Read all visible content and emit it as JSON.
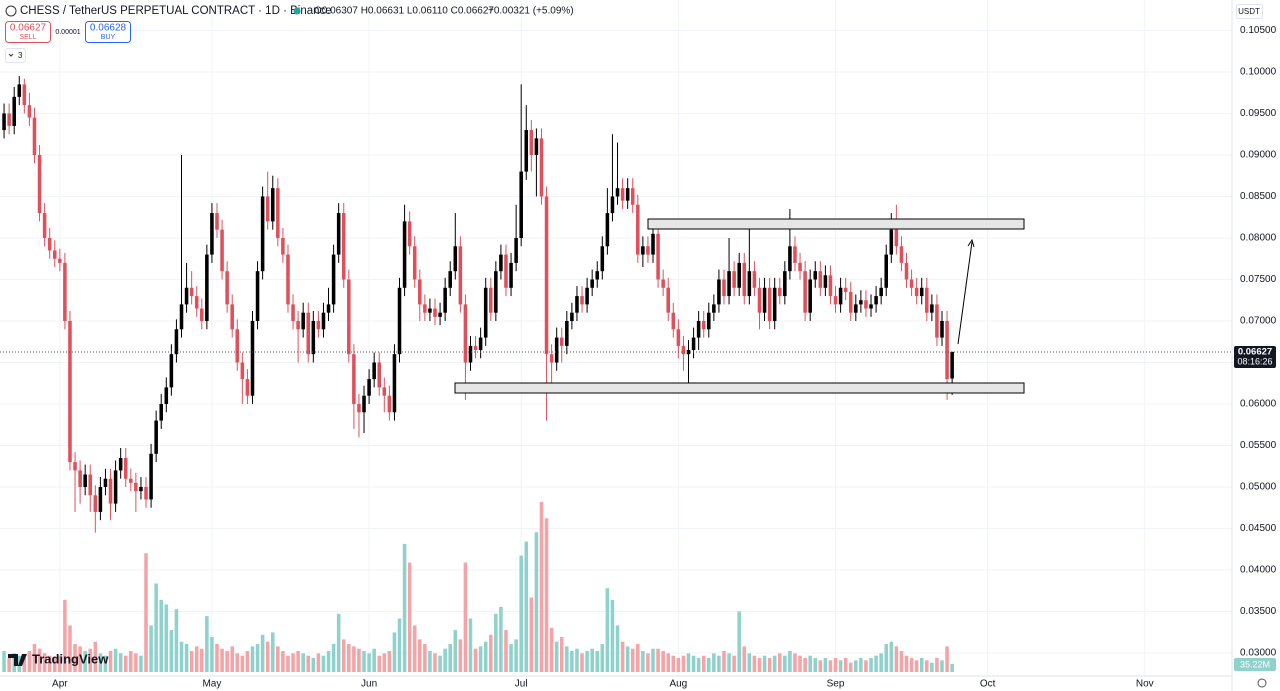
{
  "header": {
    "symbol": "CHESS / TetherUS PERPETUAL CONTRACT · 1D · Binance",
    "ohlc": "O0.06307 H0.06631 L0.06110 C0.06627",
    "change": "+0.00321 (+5.09%)",
    "sell_price": "0.06627",
    "sell": "SELL",
    "spread": "0.00001",
    "buy_price": "0.06628",
    "buy": "BUY",
    "indicators_count": "3",
    "currency": "USDT",
    "countdown": "08:16:26",
    "volume_label": "35.22M",
    "logo": "TradingView"
  },
  "chart_data": {
    "type": "candlestick",
    "up_color": "#000000",
    "down_color": "#e0505c",
    "volume_up_color": "#8fd1cb",
    "volume_down_color": "#f4a3a6",
    "grid": true,
    "xlim": [
      -0.8,
      242.2
    ],
    "xticks": [
      {
        "value": 11,
        "label": "Apr"
      },
      {
        "value": 41,
        "label": "May"
      },
      {
        "value": 72,
        "label": "Jun"
      },
      {
        "value": 102,
        "label": "Jul"
      },
      {
        "value": 133,
        "label": "Aug"
      },
      {
        "value": 164,
        "label": "Sep"
      },
      {
        "value": 194,
        "label": "Oct"
      },
      {
        "value": 225,
        "label": "Nov"
      }
    ],
    "ylim": [
      0.02723,
      0.10867
    ],
    "yticks": [
      {
        "value": 0.03,
        "label": "0.03000"
      },
      {
        "value": 0.035,
        "label": "0.03500"
      },
      {
        "value": 0.04,
        "label": "0.04000"
      },
      {
        "value": 0.045,
        "label": "0.04500"
      },
      {
        "value": 0.05,
        "label": "0.05000"
      },
      {
        "value": 0.055,
        "label": "0.05500"
      },
      {
        "value": 0.06,
        "label": "0.06000"
      },
      {
        "value": 0.065,
        "label": "0.06500"
      },
      {
        "value": 0.07,
        "label": "0.07000"
      },
      {
        "value": 0.075,
        "label": "0.07500"
      },
      {
        "value": 0.08,
        "label": "0.08000"
      },
      {
        "value": 0.085,
        "label": "0.08500"
      },
      {
        "value": 0.09,
        "label": "0.09000"
      },
      {
        "value": 0.095,
        "label": "0.09500"
      },
      {
        "value": 0.1,
        "label": "0.10000"
      },
      {
        "value": 0.105,
        "label": "0.10500"
      }
    ],
    "open": [
      0.093,
      0.095,
      0.0935,
      0.097,
      0.0985,
      0.096,
      0.0945,
      0.09,
      0.083,
      0.08,
      0.0785,
      0.0775,
      0.077,
      0.07,
      0.053,
      0.052,
      0.05,
      0.0515,
      0.049,
      0.047,
      0.05,
      0.051,
      0.048,
      0.052,
      0.0535,
      0.051,
      0.0505,
      0.0495,
      0.05,
      0.0485,
      0.054,
      0.058,
      0.06,
      0.062,
      0.066,
      0.069,
      0.072,
      0.074,
      0.073,
      0.0715,
      0.07,
      0.078,
      0.083,
      0.081,
      0.076,
      0.072,
      0.069,
      0.065,
      0.063,
      0.061,
      0.07,
      0.076,
      0.085,
      0.082,
      0.086,
      0.08,
      0.078,
      0.072,
      0.07,
      0.069,
      0.071,
      0.066,
      0.07,
      0.069,
      0.071,
      0.072,
      0.078,
      0.083,
      0.075,
      0.066,
      0.06,
      0.059,
      0.061,
      0.063,
      0.065,
      0.062,
      0.061,
      0.059,
      0.066,
      0.074,
      0.082,
      0.079,
      0.075,
      0.072,
      0.071,
      0.0715,
      0.0705,
      0.071,
      0.074,
      0.076,
      0.079,
      0.072,
      0.065,
      0.067,
      0.0665,
      0.068,
      0.074,
      0.071,
      0.076,
      0.078,
      0.074,
      0.077,
      0.08,
      0.088,
      0.093,
      0.09,
      0.092,
      0.085,
      0.066,
      0.065,
      0.068,
      0.067,
      0.07,
      0.071,
      0.073,
      0.072,
      0.074,
      0.075,
      0.076,
      0.079,
      0.083,
      0.085,
      0.086,
      0.0845,
      0.086,
      0.084,
      0.078,
      0.079,
      0.078,
      0.0805,
      0.075,
      0.074,
      0.071,
      0.069,
      0.067,
      0.066,
      0.0665,
      0.068,
      0.07,
      0.069,
      0.071,
      0.072,
      0.075,
      0.073,
      0.076,
      0.074,
      0.077,
      0.073,
      0.076,
      0.074,
      0.071,
      0.074,
      0.07,
      0.074,
      0.073,
      0.076,
      0.079,
      0.077,
      0.076,
      0.071,
      0.075,
      0.076,
      0.074,
      0.0755,
      0.073,
      0.072,
      0.074,
      0.0735,
      0.071,
      0.072,
      0.0725,
      0.0715,
      0.072,
      0.073,
      0.074,
      0.078,
      0.081,
      0.079,
      0.077,
      0.075,
      0.074,
      0.073,
      0.074,
      0.071,
      0.072,
      0.068,
      0.07,
      0.06307
    ],
    "high": [
      0.0962,
      0.0962,
      0.0982,
      0.0995,
      0.0992,
      0.0975,
      0.0957,
      0.0912,
      0.0842,
      0.0812,
      0.0797,
      0.0787,
      0.0782,
      0.0712,
      0.0542,
      0.0532,
      0.0527,
      0.0527,
      0.0502,
      0.0512,
      0.0522,
      0.0522,
      0.0532,
      0.0547,
      0.0547,
      0.0522,
      0.0517,
      0.0512,
      0.0512,
      0.0552,
      0.0592,
      0.0612,
      0.0632,
      0.0672,
      0.0702,
      0.09,
      0.077,
      0.076,
      0.0742,
      0.0727,
      0.0792,
      0.0842,
      0.0842,
      0.0822,
      0.0772,
      0.0732,
      0.0702,
      0.0662,
      0.0642,
      0.0712,
      0.0772,
      0.0862,
      0.088,
      0.0875,
      0.0872,
      0.0812,
      0.0792,
      0.0732,
      0.0712,
      0.0722,
      0.0722,
      0.0712,
      0.0712,
      0.0722,
      0.074,
      0.0792,
      0.0842,
      0.0842,
      0.0762,
      0.0672,
      0.0612,
      0.0622,
      0.0642,
      0.0662,
      0.0662,
      0.0632,
      0.0622,
      0.0672,
      0.0752,
      0.084,
      0.0832,
      0.0802,
      0.0762,
      0.0732,
      0.0727,
      0.0727,
      0.0722,
      0.0752,
      0.0772,
      0.083,
      0.0802,
      0.0732,
      0.0682,
      0.0682,
      0.0692,
      0.0752,
      0.0752,
      0.0772,
      0.0792,
      0.0792,
      0.0782,
      0.084,
      0.0985,
      0.096,
      0.0942,
      0.0932,
      0.0932,
      0.0862,
      0.0672,
      0.0692,
      0.0692,
      0.0712,
      0.0722,
      0.0742,
      0.0742,
      0.0752,
      0.0762,
      0.0772,
      0.0802,
      0.086,
      0.0925,
      0.0915,
      0.0872,
      0.0872,
      0.0872,
      0.0852,
      0.0802,
      0.0802,
      0.0817,
      0.0817,
      0.0762,
      0.0752,
      0.0722,
      0.0702,
      0.0682,
      0.0677,
      0.0692,
      0.0712,
      0.0712,
      0.0722,
      0.0732,
      0.0762,
      0.0762,
      0.08,
      0.0772,
      0.0782,
      0.0782,
      0.0815,
      0.0772,
      0.0752,
      0.0752,
      0.0752,
      0.0752,
      0.0752,
      0.0772,
      0.0835,
      0.0802,
      0.0782,
      0.0772,
      0.0762,
      0.0772,
      0.0772,
      0.0767,
      0.0767,
      0.0742,
      0.0752,
      0.0752,
      0.0747,
      0.0732,
      0.0737,
      0.0737,
      0.0732,
      0.0742,
      0.0752,
      0.0792,
      0.083,
      0.084,
      0.0802,
      0.0782,
      0.0762,
      0.0752,
      0.0752,
      0.0752,
      0.0732,
      0.0732,
      0.0712,
      0.0712,
      0.06631
    ],
    "low": [
      0.092,
      0.0925,
      0.0925,
      0.096,
      0.095,
      0.0935,
      0.089,
      0.082,
      0.079,
      0.0775,
      0.0765,
      0.076,
      0.069,
      0.052,
      0.047,
      0.048,
      0.049,
      0.047,
      0.0445,
      0.046,
      0.049,
      0.046,
      0.047,
      0.051,
      0.05,
      0.0495,
      0.047,
      0.0485,
      0.0475,
      0.0475,
      0.053,
      0.057,
      0.059,
      0.061,
      0.065,
      0.068,
      0.071,
      0.072,
      0.0705,
      0.069,
      0.069,
      0.077,
      0.08,
      0.075,
      0.071,
      0.068,
      0.064,
      0.06,
      0.06,
      0.06,
      0.069,
      0.075,
      0.081,
      0.081,
      0.079,
      0.077,
      0.071,
      0.069,
      0.065,
      0.068,
      0.065,
      0.065,
      0.068,
      0.068,
      0.07,
      0.071,
      0.077,
      0.074,
      0.065,
      0.057,
      0.056,
      0.0565,
      0.06,
      0.062,
      0.061,
      0.059,
      0.058,
      0.058,
      0.065,
      0.073,
      0.078,
      0.074,
      0.07,
      0.07,
      0.07,
      0.0695,
      0.0695,
      0.07,
      0.073,
      0.075,
      0.071,
      0.0605,
      0.064,
      0.0655,
      0.0655,
      0.067,
      0.07,
      0.07,
      0.075,
      0.073,
      0.073,
      0.076,
      0.079,
      0.087,
      0.088,
      0.085,
      0.084,
      0.058,
      0.062,
      0.064,
      0.065,
      0.066,
      0.069,
      0.07,
      0.071,
      0.071,
      0.073,
      0.074,
      0.075,
      0.078,
      0.082,
      0.084,
      0.0835,
      0.0835,
      0.083,
      0.077,
      0.0765,
      0.077,
      0.077,
      0.074,
      0.073,
      0.07,
      0.068,
      0.0655,
      0.064,
      0.0625,
      0.0655,
      0.0665,
      0.068,
      0.068,
      0.07,
      0.071,
      0.072,
      0.072,
      0.073,
      0.073,
      0.072,
      0.072,
      0.073,
      0.069,
      0.07,
      0.069,
      0.069,
      0.072,
      0.072,
      0.075,
      0.076,
      0.075,
      0.07,
      0.07,
      0.074,
      0.073,
      0.073,
      0.072,
      0.071,
      0.071,
      0.0725,
      0.07,
      0.07,
      0.071,
      0.0705,
      0.0705,
      0.071,
      0.072,
      0.073,
      0.077,
      0.078,
      0.076,
      0.074,
      0.073,
      0.072,
      0.072,
      0.07,
      0.07,
      0.067,
      0.067,
      0.0605,
      0.0611
    ],
    "close": [
      0.095,
      0.0935,
      0.097,
      0.0985,
      0.096,
      0.0945,
      0.09,
      0.083,
      0.08,
      0.0785,
      0.0775,
      0.077,
      0.07,
      0.053,
      0.052,
      0.05,
      0.0515,
      0.049,
      0.047,
      0.05,
      0.051,
      0.048,
      0.052,
      0.0535,
      0.051,
      0.0505,
      0.0495,
      0.05,
      0.0485,
      0.054,
      0.058,
      0.06,
      0.062,
      0.066,
      0.069,
      0.072,
      0.074,
      0.073,
      0.0715,
      0.07,
      0.078,
      0.083,
      0.081,
      0.076,
      0.072,
      0.069,
      0.065,
      0.063,
      0.061,
      0.07,
      0.076,
      0.085,
      0.082,
      0.086,
      0.08,
      0.078,
      0.072,
      0.07,
      0.069,
      0.071,
      0.066,
      0.07,
      0.069,
      0.071,
      0.072,
      0.078,
      0.083,
      0.075,
      0.066,
      0.06,
      0.059,
      0.061,
      0.063,
      0.065,
      0.062,
      0.061,
      0.059,
      0.066,
      0.074,
      0.082,
      0.079,
      0.075,
      0.072,
      0.071,
      0.0715,
      0.0705,
      0.071,
      0.074,
      0.076,
      0.079,
      0.072,
      0.065,
      0.067,
      0.0665,
      0.068,
      0.074,
      0.071,
      0.076,
      0.078,
      0.074,
      0.077,
      0.08,
      0.088,
      0.093,
      0.09,
      0.092,
      0.085,
      0.066,
      0.065,
      0.068,
      0.067,
      0.07,
      0.071,
      0.073,
      0.072,
      0.074,
      0.075,
      0.076,
      0.079,
      0.083,
      0.085,
      0.086,
      0.0845,
      0.086,
      0.084,
      0.078,
      0.079,
      0.078,
      0.0805,
      0.075,
      0.074,
      0.071,
      0.069,
      0.067,
      0.066,
      0.0665,
      0.068,
      0.07,
      0.069,
      0.071,
      0.072,
      0.075,
      0.073,
      0.076,
      0.074,
      0.077,
      0.073,
      0.076,
      0.074,
      0.071,
      0.074,
      0.07,
      0.074,
      0.073,
      0.076,
      0.079,
      0.077,
      0.076,
      0.071,
      0.075,
      0.076,
      0.074,
      0.0755,
      0.073,
      0.072,
      0.074,
      0.0735,
      0.071,
      0.072,
      0.0725,
      0.0715,
      0.072,
      0.073,
      0.074,
      0.078,
      0.081,
      0.079,
      0.077,
      0.075,
      0.074,
      0.073,
      0.074,
      0.071,
      0.072,
      0.068,
      0.07,
      0.063,
      0.06627
    ],
    "volume": [
      90,
      60,
      80,
      70,
      60,
      90,
      120,
      100,
      80,
      70,
      60,
      70,
      310,
      200,
      120,
      110,
      90,
      100,
      130,
      80,
      70,
      90,
      100,
      80,
      70,
      90,
      80,
      70,
      510,
      200,
      380,
      310,
      290,
      180,
      270,
      130,
      120,
      90,
      110,
      100,
      240,
      150,
      120,
      100,
      90,
      110,
      80,
      70,
      90,
      110,
      120,
      160,
      130,
      170,
      110,
      90,
      70,
      80,
      90,
      80,
      70,
      60,
      80,
      70,
      90,
      120,
      250,
      140,
      120,
      110,
      100,
      90,
      80,
      100,
      70,
      80,
      90,
      170,
      230,
      550,
      470,
      200,
      140,
      120,
      90,
      80,
      70,
      100,
      120,
      180,
      140,
      470,
      230,
      100,
      110,
      130,
      160,
      250,
      280,
      180,
      120,
      140,
      500,
      560,
      320,
      600,
      730,
      660,
      190,
      130,
      150,
      110,
      90,
      100,
      80,
      90,
      100,
      90,
      120,
      360,
      310,
      200,
      130,
      110,
      100,
      120,
      90,
      80,
      100,
      100,
      90,
      80,
      70,
      60,
      70,
      80,
      70,
      60,
      70,
      60,
      80,
      70,
      90,
      80,
      70,
      260,
      110,
      80,
      70,
      60,
      70,
      60,
      70,
      80,
      70,
      90,
      80,
      70,
      60,
      70,
      60,
      50,
      60,
      50,
      60,
      50,
      60,
      40,
      50,
      60,
      50,
      60,
      70,
      80,
      120,
      130,
      110,
      90,
      70,
      60,
      50,
      60,
      50,
      40,
      60,
      50,
      110,
      35.22
    ]
  }
}
